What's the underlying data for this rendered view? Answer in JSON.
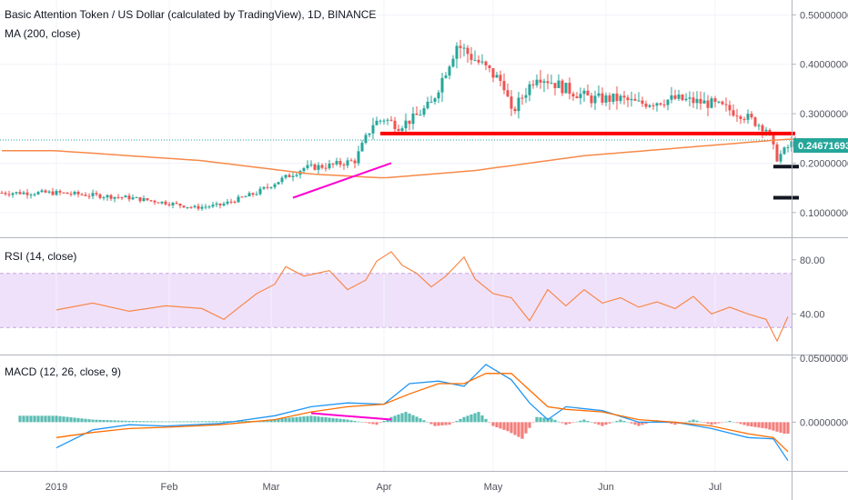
{
  "chart_title": "Basic Attention Token / US Dollar (calculated by TradingView), 1D, BINANCE",
  "ma_label": "MA (200, close)",
  "rsi_label": "RSI (14, close)",
  "macd_label": "MACD (12, 26, close, 9)",
  "last_price_label": "0.24671693",
  "colors": {
    "up": "#26a69a",
    "down": "#ef5350",
    "ma": "#f7894a",
    "rsi": "#f7894a",
    "rsi_band": "#f0e1fb",
    "macd_line": "#2196f3",
    "signal_line": "#ff6d00",
    "support_red": "#ff0000",
    "trend_magenta": "#ff00d0",
    "target_black": "#131722",
    "price_line": "#26a69a"
  },
  "chart_data": [
    {
      "type": "candlestick",
      "pane": "price",
      "x_tick_labels": [
        "2019",
        "Feb",
        "Mar",
        "Apr",
        "May",
        "Jun",
        "Jul"
      ],
      "y_tick_labels": [
        "0.50000000",
        "0.40000000",
        "0.30000000",
        "0.20000000",
        "0.10000000"
      ],
      "y_ticks": [
        0.5,
        0.4,
        0.3,
        0.2,
        0.1
      ],
      "ylim": [
        0.05,
        0.53
      ],
      "price_path": {
        "days": [
          0,
          10,
          20,
          30,
          38,
          45,
          55,
          60,
          68,
          75,
          82,
          87,
          90,
          94,
          98,
          103,
          110,
          115,
          123,
          125,
          132,
          140,
          147,
          155,
          160,
          170,
          180,
          188,
          195,
          198,
          203
        ],
        "close": [
          0.14,
          0.135,
          0.13,
          0.12,
          0.11,
          0.115,
          0.14,
          0.16,
          0.19,
          0.195,
          0.205,
          0.28,
          0.29,
          0.275,
          0.29,
          0.32,
          0.44,
          0.41,
          0.36,
          0.3,
          0.38,
          0.35,
          0.33,
          0.33,
          0.32,
          0.33,
          0.32,
          0.3,
          0.27,
          0.21,
          0.247
        ]
      },
      "ma_path": {
        "days": [
          0,
          40,
          70,
          90,
          115,
          145,
          175,
          200
        ],
        "value": [
          0.225,
          0.205,
          0.178,
          0.17,
          0.185,
          0.215,
          0.233,
          0.248
        ]
      },
      "last_price": 0.24671693,
      "annotations": [
        {
          "type": "support_line",
          "from_day": 89,
          "to_day": 203,
          "value": 0.26
        },
        {
          "type": "trend_line",
          "from": [
            65,
            0.13
          ],
          "to": [
            92,
            0.2
          ]
        },
        {
          "type": "target_level",
          "from_day": 197,
          "to_day": 204,
          "value": 0.193
        },
        {
          "type": "target_level",
          "from_day": 197,
          "to_day": 204,
          "value": 0.13
        }
      ]
    },
    {
      "type": "line",
      "pane": "rsi",
      "y_tick_labels": [
        "80.00",
        "40.00"
      ],
      "y_ticks": [
        80,
        40
      ],
      "ylim": [
        10,
        96
      ],
      "band": [
        30,
        70
      ],
      "x": [
        0,
        10,
        20,
        30,
        40,
        46,
        55,
        60,
        63,
        68,
        75,
        80,
        85,
        88,
        92,
        95,
        99,
        103,
        107,
        112,
        115,
        120,
        125,
        130,
        135,
        140,
        145,
        150,
        155,
        160,
        165,
        170,
        175,
        180,
        185,
        190,
        195,
        198,
        201
      ],
      "values": [
        43,
        48,
        42,
        46,
        44,
        36,
        55,
        62,
        75,
        68,
        72,
        58,
        65,
        79,
        86,
        76,
        70,
        60,
        68,
        82,
        66,
        55,
        52,
        35,
        58,
        46,
        58,
        48,
        52,
        45,
        49,
        44,
        53,
        40,
        45,
        40,
        36,
        20,
        38
      ]
    },
    {
      "type": "line",
      "pane": "macd",
      "y_tick_labels": [
        "0.05000000",
        "0.00000000"
      ],
      "y_ticks": [
        0.05,
        0
      ],
      "ylim": [
        -0.038,
        0.052
      ],
      "series": [
        {
          "name": "MACD",
          "x": [
            0,
            10,
            20,
            30,
            45,
            60,
            70,
            80,
            90,
            97,
            105,
            112,
            118,
            125,
            130,
            135,
            140,
            150,
            160,
            170,
            180,
            190,
            197,
            201
          ],
          "values": [
            -0.02,
            -0.006,
            -0.002,
            -0.003,
            -0.001,
            0.005,
            0.012,
            0.015,
            0.014,
            0.03,
            0.032,
            0.028,
            0.045,
            0.033,
            0.015,
            0.002,
            0.012,
            0.009,
            0.0,
            0.0,
            -0.005,
            -0.012,
            -0.013,
            -0.03
          ]
        },
        {
          "name": "Signal",
          "x": [
            0,
            10,
            20,
            30,
            45,
            60,
            70,
            80,
            90,
            97,
            105,
            112,
            118,
            125,
            130,
            135,
            140,
            150,
            160,
            170,
            180,
            190,
            197,
            201
          ],
          "values": [
            -0.012,
            -0.008,
            -0.005,
            -0.004,
            -0.002,
            0.002,
            0.008,
            0.012,
            0.014,
            0.022,
            0.03,
            0.03,
            0.038,
            0.038,
            0.025,
            0.012,
            0.01,
            0.008,
            0.002,
            0.0,
            -0.003,
            -0.009,
            -0.012,
            -0.023
          ]
        }
      ],
      "histogram": {
        "x": [
          0,
          10,
          20,
          30,
          45,
          55,
          62,
          70,
          80,
          88,
          92,
          96,
          100,
          104,
          108,
          112,
          116,
          120,
          124,
          128,
          132,
          136,
          140,
          145,
          150,
          155,
          160,
          165,
          170,
          175,
          180,
          185,
          190,
          195,
          200
        ],
        "values": [
          0.005,
          0.002,
          0.001,
          0.0005,
          0.0008,
          0.001,
          0.003,
          0.005,
          0.002,
          -0.002,
          0.004,
          0.008,
          0.003,
          -0.003,
          -0.002,
          0.004,
          0.008,
          -0.003,
          -0.007,
          -0.013,
          0.004,
          0.003,
          -0.002,
          0.002,
          -0.003,
          0.002,
          -0.003,
          0.0015,
          -0.002,
          0.002,
          -0.002,
          0.001,
          -0.003,
          -0.005,
          -0.009
        ]
      },
      "annotations": [
        {
          "type": "trend_line",
          "from": [
            70,
            0.007
          ],
          "to": [
            92,
            0.002
          ]
        }
      ]
    }
  ]
}
